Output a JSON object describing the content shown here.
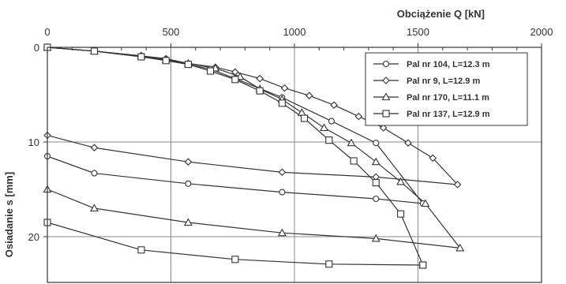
{
  "chart_data": {
    "type": "line",
    "title": "",
    "xlabel": "Obciążenie  Q [kN]",
    "ylabel": "Osiadanie  s [mm]",
    "xlim": [
      0,
      2000
    ],
    "ylim": [
      0,
      24
    ],
    "y_inverted": true,
    "x_axis_position": "top",
    "x_ticks": [
      0,
      500,
      1000,
      1500,
      2000
    ],
    "y_ticks": [
      0,
      10,
      20
    ],
    "grid": true,
    "legend_position": "top-right",
    "colors": {
      "line": "#333333",
      "grid": "#888888",
      "frame": "#333333",
      "marker_fill": "#ffffff"
    },
    "series": [
      {
        "name": "Pal nr 104, L=12.3 m",
        "marker": "circle",
        "x": [
          0,
          190,
          380,
          480,
          570,
          660,
          760,
          950,
          1150,
          1330,
          1520,
          1330,
          950,
          570,
          190,
          0
        ],
        "y": [
          0,
          0.4,
          0.9,
          1.3,
          1.8,
          2.3,
          3.3,
          5.3,
          7.8,
          10.1,
          16.5,
          16.0,
          15.3,
          14.4,
          13.3,
          11.5
        ]
      },
      {
        "name": "Pal nr 9, L=12.9 m",
        "marker": "diamond",
        "x": [
          0,
          190,
          380,
          480,
          570,
          680,
          760,
          860,
          960,
          1060,
          1160,
          1260,
          1360,
          1460,
          1560,
          1660,
          1330,
          950,
          570,
          190,
          0
        ],
        "y": [
          0,
          0.4,
          0.9,
          1.2,
          1.7,
          2.1,
          2.6,
          3.3,
          4.3,
          5.1,
          6.1,
          7.3,
          8.5,
          10.1,
          11.7,
          14.5,
          13.7,
          13.2,
          12.1,
          10.6,
          9.3
        ]
      },
      {
        "name": "Pal nr 170, L=11.1 m",
        "marker": "triangle",
        "x": [
          0,
          190,
          380,
          480,
          570,
          680,
          780,
          860,
          950,
          1030,
          1120,
          1230,
          1330,
          1430,
          1530,
          1670,
          1330,
          950,
          570,
          190,
          0
        ],
        "y": [
          0,
          0.4,
          0.9,
          1.3,
          1.7,
          2.2,
          3.1,
          4.4,
          5.5,
          6.9,
          8.5,
          10.1,
          12.1,
          14.2,
          16.5,
          21.2,
          20.2,
          19.6,
          18.5,
          17.0,
          15.0
        ]
      },
      {
        "name": "Pal nr 137, L=12.9 m",
        "marker": "square",
        "x": [
          0,
          190,
          380,
          480,
          570,
          660,
          760,
          860,
          950,
          1040,
          1140,
          1240,
          1330,
          1430,
          1520,
          1520,
          1140,
          760,
          380,
          0
        ],
        "y": [
          0,
          0.4,
          1.0,
          1.4,
          1.8,
          2.5,
          3.4,
          4.6,
          5.9,
          7.5,
          9.8,
          12.0,
          14.3,
          17.6,
          23.0,
          23.0,
          22.9,
          22.4,
          21.4,
          18.5
        ]
      }
    ]
  }
}
